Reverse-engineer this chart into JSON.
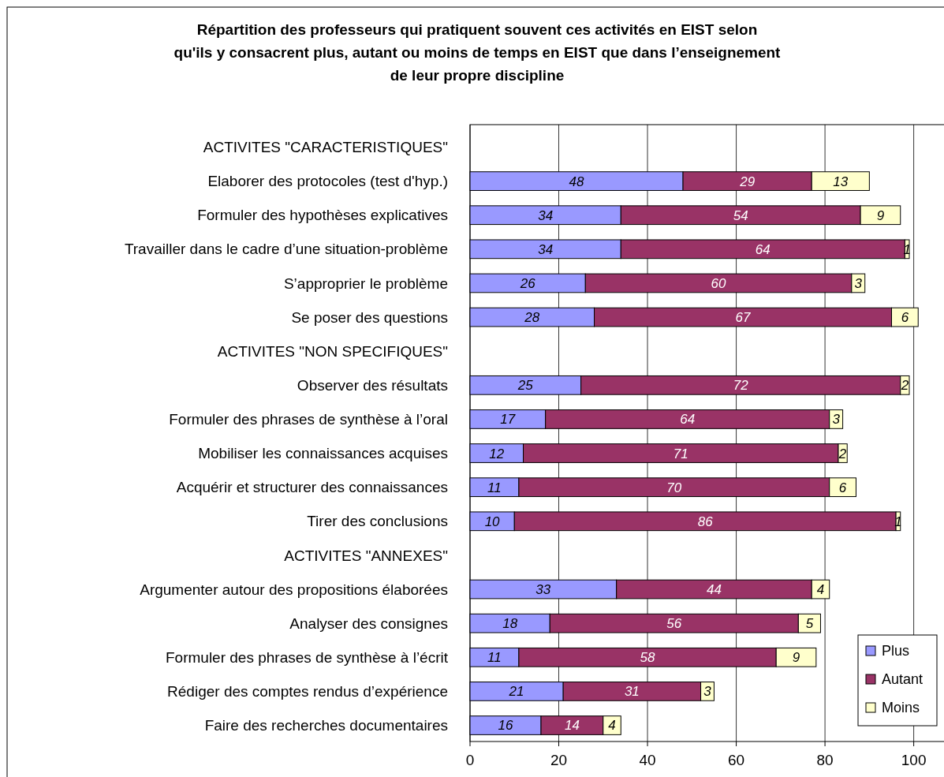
{
  "chart_data": {
    "type": "bar",
    "orientation": "horizontal",
    "stacked": true,
    "title": "Répartition des professeurs qui pratiquent souvent ces activités en EIST selon qu'ils y consacrent plus, autant ou moins de temps en EIST que dans l’enseignement de leur propre discipline",
    "categories": [
      "ACTIVITES \"CARACTERISTIQUES\"",
      "Elaborer des protocoles (test d'hyp.)",
      "Formuler des hypothèses explicatives",
      "Travailler dans le cadre d’une situation-problème",
      "S’approprier le problème",
      "Se poser des questions",
      "ACTIVITES \"NON SPECIFIQUES\"",
      "Observer des résultats",
      "Formuler des phrases de synthèse à l’oral",
      "Mobiliser les connaissances acquises",
      "Acquérir et structurer des connaissances",
      "Tirer des conclusions",
      "ACTIVITES \"ANNEXES\"",
      "Argumenter autour des propositions élaborées",
      "Analyser des consignes",
      "Formuler des phrases de synthèse à l’écrit",
      "Rédiger des comptes rendus d’expérience",
      "Faire des recherches documentaires"
    ],
    "series": [
      {
        "name": "Plus",
        "color": "#9999ff",
        "values": [
          null,
          48,
          34,
          34,
          26,
          28,
          null,
          25,
          17,
          12,
          11,
          10,
          null,
          33,
          18,
          11,
          21,
          16
        ]
      },
      {
        "name": "Autant",
        "color": "#993366",
        "values": [
          null,
          29,
          54,
          64,
          60,
          67,
          null,
          72,
          64,
          71,
          70,
          86,
          null,
          44,
          56,
          58,
          31,
          14
        ]
      },
      {
        "name": "Moins",
        "color": "#ffffcc",
        "values": [
          null,
          13,
          9,
          1,
          3,
          6,
          null,
          2,
          3,
          2,
          6,
          1,
          null,
          4,
          5,
          9,
          3,
          4
        ]
      }
    ],
    "xlim": [
      0,
      107
    ],
    "xticks": [
      0,
      20,
      40,
      60,
      80,
      100
    ],
    "grid": "x",
    "legend": "bottom right",
    "data_labels": true
  }
}
